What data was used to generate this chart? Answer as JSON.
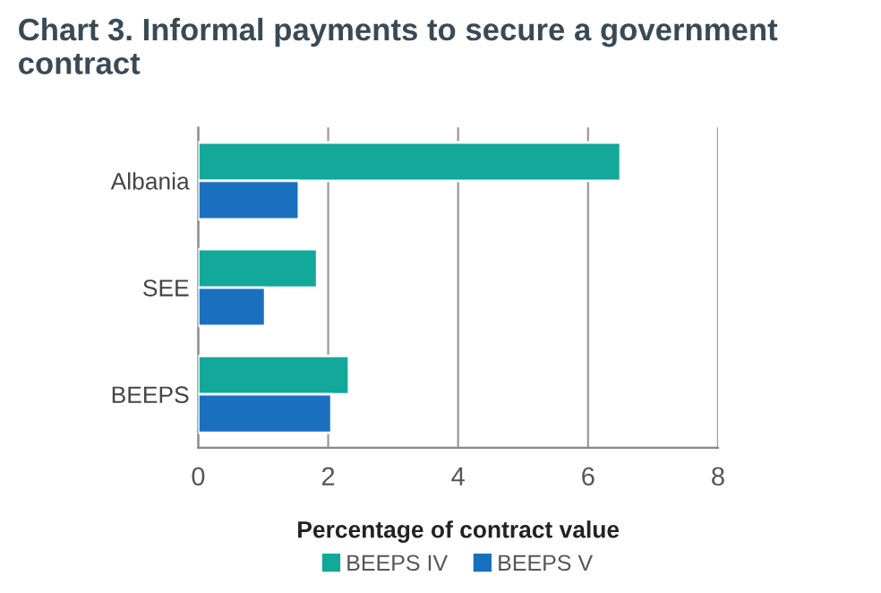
{
  "chart_data": {
    "type": "bar",
    "orientation": "horizontal",
    "title": "Chart 3. Informal payments to secure a government contract",
    "xlabel": "Percentage of contract value",
    "categories": [
      "Albania",
      "SEE",
      "BEEPS"
    ],
    "series": [
      {
        "name": "BEEPS IV",
        "color": "#12a89a",
        "values": [
          6.5,
          1.83,
          2.32
        ]
      },
      {
        "name": "BEEPS V",
        "color": "#1a70bf",
        "values": [
          1.55,
          1.03,
          2.05
        ]
      }
    ],
    "xlim": [
      0,
      8
    ],
    "xticks": [
      0,
      2,
      4,
      6,
      8
    ],
    "grid": "x",
    "legend": "bottom"
  }
}
